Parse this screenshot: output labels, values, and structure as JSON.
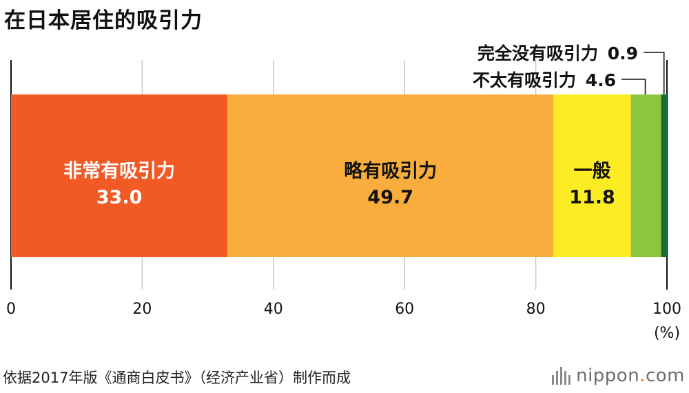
{
  "title": "在日本居住的吸引力",
  "source": "依据2017年版《通商白皮书》（经济产业省）制作而成",
  "logo_text": "nippon",
  "logo_dot": ".",
  "logo_suffix": "com",
  "chart_data": {
    "type": "bar",
    "orientation": "horizontal-stacked",
    "xlim": [
      0,
      100
    ],
    "x_ticks": [
      0,
      20,
      40,
      60,
      80,
      100
    ],
    "unit": "(%)",
    "grid": true,
    "series": [
      {
        "name": "非常有吸引力",
        "value": 33.0,
        "color": "#f15a24",
        "label_color": "#ffffff"
      },
      {
        "name": "略有吸引力",
        "value": 49.7,
        "color": "#f9ad3c",
        "label_color": "#111111"
      },
      {
        "name": "一般",
        "value": 11.8,
        "color": "#fbec24",
        "label_color": "#111111"
      },
      {
        "name": "不太有吸引力",
        "value": 4.6,
        "color": "#8cc63f",
        "label_color": "#111111"
      },
      {
        "name": "完全没有吸引力",
        "value": 0.9,
        "color": "#1a6b37",
        "label_color": "#111111"
      }
    ]
  }
}
